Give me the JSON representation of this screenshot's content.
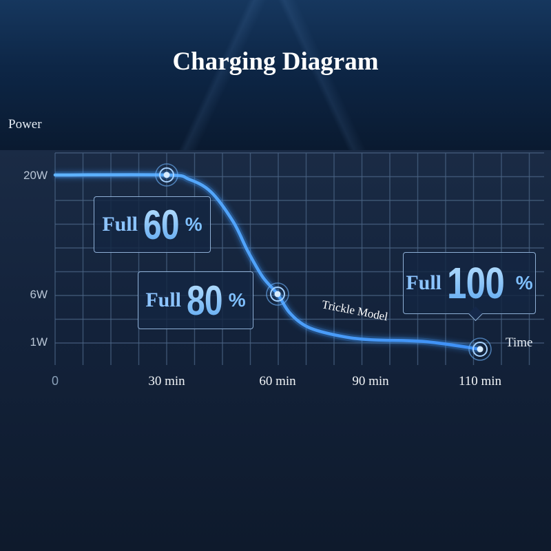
{
  "title": "Charging Diagram",
  "chart_data": {
    "type": "line",
    "title": "Charging Diagram",
    "ylabel": "Power",
    "xlabel": "Time",
    "x_ticks": [
      {
        "value": 0,
        "label": "0"
      },
      {
        "value": 30,
        "label": "30 min"
      },
      {
        "value": 60,
        "label": "60 min"
      },
      {
        "value": 90,
        "label": "90 min"
      },
      {
        "value": 110,
        "label": "110 min"
      }
    ],
    "y_ticks": [
      {
        "value": 20,
        "label": "20W"
      },
      {
        "value": 6,
        "label": "6W"
      },
      {
        "value": 1,
        "label": "1W"
      }
    ],
    "series": [
      {
        "x": [
          0,
          30,
          36,
          42,
          48,
          52,
          56,
          60,
          64,
          70,
          80,
          90,
          100,
          110
        ],
        "y": [
          20,
          20,
          19.5,
          18,
          14.5,
          11,
          8,
          6,
          4,
          2.5,
          1.6,
          1.2,
          1.0,
          0.8
        ]
      }
    ],
    "markers": [
      {
        "x": 30,
        "y": 20,
        "word": "Full",
        "value": "60",
        "unit": "%"
      },
      {
        "x": 60,
        "y": 6,
        "word": "Full",
        "value": "80",
        "unit": "%"
      },
      {
        "x": 110,
        "y": 0.8,
        "word": "Full",
        "value": "100",
        "unit": "%"
      }
    ],
    "annotations": [
      {
        "text": "Trickle Model",
        "x": 75
      }
    ],
    "grid": true,
    "line_color": "#3f9cff"
  }
}
